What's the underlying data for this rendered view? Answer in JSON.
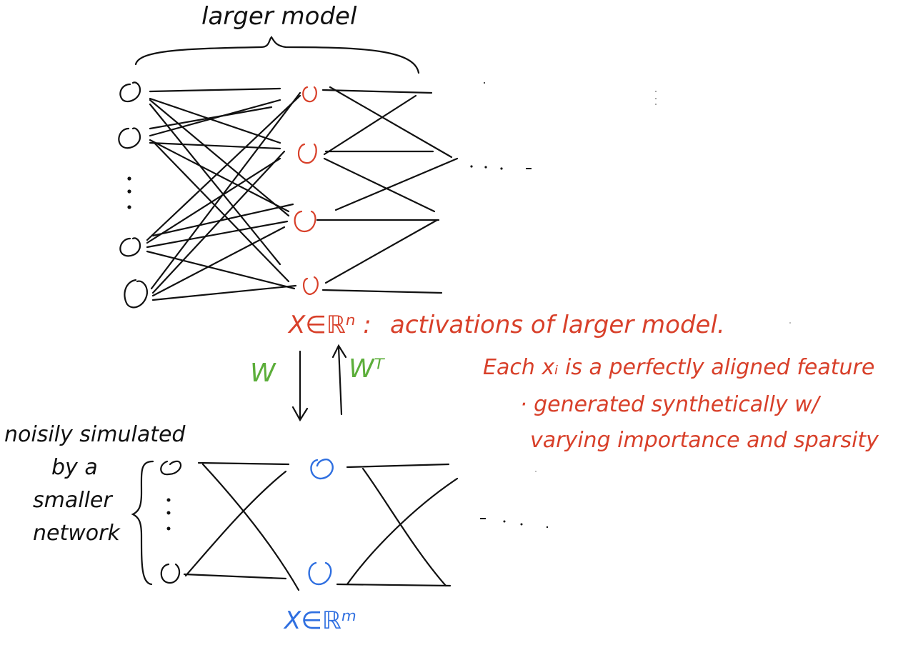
{
  "colors": {
    "ink": "#111111",
    "red": "#d8402a",
    "blue": "#2f6fe0",
    "green": "#5cae3a"
  },
  "top_brace_label": "larger model",
  "top_layers": [
    {
      "nodes": [
        "input-node",
        "input-node",
        "input-node",
        "input-node"
      ],
      "has_ellipsis": true,
      "color": "ink"
    },
    {
      "nodes": [
        "hidden-node",
        "hidden-node",
        "hidden-node",
        "hidden-node"
      ],
      "has_ellipsis": false,
      "color": "red"
    }
  ],
  "trailing_ellipsis": ". . . .",
  "larger_activation_symbol": "X∈ℝⁿ :",
  "larger_activation_desc": "activations of larger model.",
  "feature_note_line1": "Each xᵢ is a perfectly aligned feature",
  "feature_note_line2": "· generated synthetically w/",
  "feature_note_line3": "varying importance and sparsity",
  "down_arrow_label": "W",
  "up_arrow_label": "Wᵀ",
  "side_note": [
    "noisily simulated",
    "by a",
    "smaller",
    "network"
  ],
  "smaller_activation_symbol": "X∈ℝᵐ",
  "bottom_ellipsis": ". . . ."
}
